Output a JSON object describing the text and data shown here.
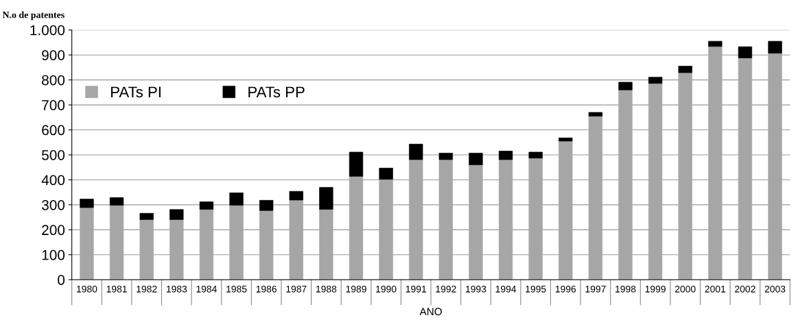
{
  "chart_data": {
    "type": "bar",
    "stacked": true,
    "ylabel": "N.o de patentes",
    "xlabel": "ANO",
    "categories": [
      "1980",
      "1981",
      "1982",
      "1983",
      "1984",
      "1985",
      "1986",
      "1987",
      "1988",
      "1989",
      "1990",
      "1991",
      "1992",
      "1993",
      "1994",
      "1995",
      "1996",
      "1997",
      "1998",
      "1999",
      "2000",
      "2001",
      "2002",
      "2003"
    ],
    "series": [
      {
        "name": "PATs PI",
        "color": "#a6a6a6",
        "values": [
          289,
          298,
          241,
          241,
          282,
          298,
          277,
          319,
          282,
          414,
          402,
          481,
          481,
          460,
          481,
          487,
          555,
          655,
          760,
          786,
          829,
          934,
          888,
          907
        ]
      },
      {
        "name": "PATs PP",
        "color": "#000000",
        "values": [
          34,
          31,
          25,
          40,
          30,
          50,
          41,
          35,
          88,
          97,
          45,
          62,
          26,
          47,
          34,
          24,
          13,
          15,
          31,
          25,
          26,
          21,
          45,
          48
        ]
      }
    ],
    "ylim": [
      0,
      1000
    ],
    "yticks": [
      0,
      100,
      200,
      300,
      400,
      500,
      600,
      700,
      800,
      900,
      {
        "value": 1000,
        "label": "1.000"
      }
    ],
    "grid": "y",
    "legend": "top left"
  }
}
